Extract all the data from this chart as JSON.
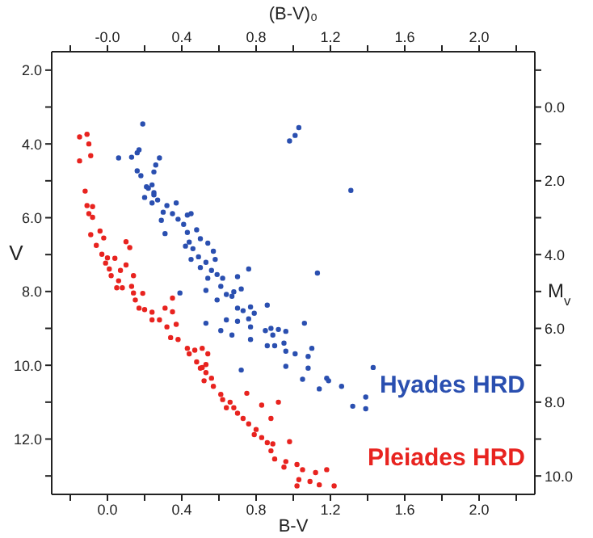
{
  "chart_data": {
    "type": "scatter",
    "xlabel": "B-V",
    "x2label": "(B-V)₀",
    "ylabel": "V",
    "y2label": "M$_{v}$",
    "xlim": [
      -0.3,
      2.3
    ],
    "x2lim": [
      -0.3,
      2.3
    ],
    "ylim": [
      13.5,
      1.5
    ],
    "y2lim": [
      10.5,
      -1.5
    ],
    "xticks": [
      {
        "value": -0.2,
        "label": null
      },
      {
        "value": 0,
        "label": "0.0"
      },
      {
        "value": 0.2,
        "label": null
      },
      0.4,
      {
        "value": 0.6,
        "label": null
      },
      0.8,
      {
        "value": 1.0,
        "label": null
      },
      1.2,
      {
        "value": 1.4,
        "label": null
      },
      1.6,
      {
        "value": 1.8,
        "label": null
      },
      {
        "value": 2.0,
        "label": "2.0"
      },
      {
        "value": 2.2,
        "label": null
      }
    ],
    "x2ticks": [
      {
        "value": -0.2,
        "label": null
      },
      {
        "value": 0,
        "label": "-0.0"
      },
      {
        "value": 0.2,
        "label": null
      },
      0.4,
      {
        "value": 0.6,
        "label": null
      },
      0.8,
      {
        "value": 1.0,
        "label": null
      },
      1.2,
      {
        "value": 1.4,
        "label": null
      },
      1.6,
      {
        "value": 1.8,
        "label": null
      },
      {
        "value": 2.0,
        "label": "2.0"
      },
      {
        "value": 2.2,
        "label": null
      }
    ],
    "yticks": [
      {
        "value": 2,
        "label": "2.0"
      },
      {
        "value": 3,
        "label": null
      },
      {
        "value": 4,
        "label": "4.0"
      },
      {
        "value": 5,
        "label": null
      },
      {
        "value": 6,
        "label": "6.0"
      },
      {
        "value": 7,
        "label": null
      },
      {
        "value": 8,
        "label": "8.0"
      },
      {
        "value": 9,
        "label": null
      },
      {
        "value": 10,
        "label": "10.0"
      },
      {
        "value": 11,
        "label": null
      },
      {
        "value": 12,
        "label": "12.0"
      },
      {
        "value": 13,
        "label": null
      }
    ],
    "y2ticks": [
      {
        "value": -1,
        "label": null
      },
      {
        "value": 0,
        "label": "0.0"
      },
      {
        "value": 1,
        "label": null
      },
      {
        "value": 2,
        "label": "2.0"
      },
      {
        "value": 3,
        "label": null
      },
      {
        "value": 4,
        "label": "4.0"
      },
      {
        "value": 5,
        "label": null
      },
      {
        "value": 6,
        "label": "6.0"
      },
      {
        "value": 7,
        "label": null
      },
      {
        "value": 8,
        "label": "8.0"
      },
      {
        "value": 9,
        "label": null
      },
      {
        "value": 10,
        "label": "10.0"
      }
    ],
    "marker": "circle",
    "legend": false,
    "series": [
      {
        "name": "Hyades HRD",
        "color": "#2a4fb0",
        "x": [
          0.19,
          0.06,
          0.13,
          0.16,
          0.17,
          0.16,
          0.18,
          0.26,
          0.28,
          0.25,
          0.22,
          0.25,
          0.98,
          1.01,
          1.03,
          1.31,
          0.21,
          0.24,
          0.2,
          0.25,
          0.27,
          0.24,
          0.32,
          0.37,
          0.3,
          0.35,
          0.43,
          0.45,
          0.29,
          0.38,
          0.41,
          0.31,
          0.43,
          0.48,
          0.44,
          0.5,
          0.42,
          0.46,
          0.54,
          0.57,
          0.45,
          0.49,
          0.53,
          0.58,
          0.5,
          0.56,
          0.59,
          0.62,
          0.54,
          0.7,
          0.76,
          1.13,
          0.61,
          0.53,
          0.39,
          0.64,
          0.68,
          0.67,
          0.72,
          0.59,
          0.7,
          0.73,
          0.77,
          0.79,
          0.86,
          0.76,
          0.7,
          0.64,
          0.53,
          0.77,
          0.85,
          0.88,
          0.92,
          0.96,
          0.89,
          0.67,
          0.61,
          0.77,
          0.86,
          0.9,
          0.95,
          0.96,
          1.01,
          1.08,
          1.06,
          1.1,
          0.96,
          1.08,
          1.43,
          0.72,
          1.05,
          1.14,
          1.18,
          1.19,
          1.26,
          1.32,
          1.39,
          1.39
        ],
        "values": [
          3.46,
          4.38,
          4.36,
          4.24,
          4.16,
          4.73,
          4.86,
          4.57,
          4.38,
          4.76,
          5.2,
          5.32,
          3.92,
          3.77,
          3.56,
          5.26,
          5.16,
          5.11,
          5.45,
          5.38,
          5.52,
          5.6,
          5.67,
          5.6,
          5.85,
          5.89,
          5.93,
          5.89,
          6.07,
          6.04,
          6.18,
          6.43,
          6.4,
          6.33,
          6.66,
          6.57,
          6.77,
          6.84,
          6.69,
          6.91,
          7.13,
          7.06,
          7.21,
          7.13,
          7.35,
          7.43,
          7.54,
          7.64,
          7.64,
          7.6,
          7.39,
          7.5,
          7.86,
          7.97,
          8.04,
          8.08,
          8.01,
          8.13,
          7.93,
          8.23,
          8.45,
          8.52,
          8.42,
          8.59,
          8.37,
          8.74,
          8.81,
          8.77,
          8.86,
          8.96,
          9.06,
          9.0,
          9.03,
          9.08,
          9.18,
          9.18,
          9.06,
          9.3,
          9.47,
          9.47,
          9.4,
          9.62,
          9.69,
          9.76,
          8.86,
          9.54,
          10.03,
          10.08,
          10.06,
          10.13,
          10.38,
          10.64,
          10.35,
          10.42,
          10.57,
          11.11,
          10.86,
          11.18
        ]
      },
      {
        "name": "Pleiades HRD",
        "color": "#e8231f",
        "x": [
          -0.15,
          -0.11,
          -0.1,
          -0.09,
          -0.15,
          -0.12,
          -0.11,
          -0.08,
          -0.1,
          -0.08,
          -0.04,
          -0.09,
          -0.02,
          -0.06,
          0.1,
          0.12,
          -0.03,
          0.0,
          0.04,
          -0.01,
          0.1,
          0.01,
          0.02,
          0.07,
          0.06,
          0.14,
          0.05,
          0.08,
          0.13,
          0.14,
          0.19,
          0.15,
          0.17,
          0.2,
          0.24,
          0.35,
          0.31,
          0.35,
          0.24,
          0.28,
          0.32,
          0.37,
          0.34,
          0.38,
          0.43,
          0.47,
          0.51,
          0.44,
          0.54,
          0.48,
          0.53,
          0.5,
          0.51,
          0.53,
          0.52,
          0.56,
          0.57,
          0.61,
          0.62,
          0.66,
          0.64,
          0.68,
          0.75,
          0.7,
          0.73,
          0.83,
          0.88,
          0.92,
          0.76,
          0.8,
          0.79,
          0.83,
          0.86,
          0.89,
          0.98,
          0.88,
          0.9,
          0.96,
          0.95,
          1.02,
          1.05,
          1.12,
          1.18,
          1.03,
          1.09,
          1.14,
          1.02,
          1.22
        ],
        "values": [
          3.81,
          3.74,
          4.0,
          4.32,
          4.46,
          5.28,
          5.67,
          5.7,
          5.89,
          5.99,
          6.36,
          6.46,
          6.55,
          6.75,
          6.65,
          6.81,
          6.99,
          7.09,
          7.1,
          7.23,
          7.28,
          7.39,
          7.57,
          7.43,
          7.71,
          7.57,
          7.9,
          7.9,
          7.86,
          8.04,
          8.05,
          8.23,
          8.45,
          8.49,
          8.56,
          8.18,
          8.45,
          8.55,
          8.77,
          8.77,
          8.96,
          8.89,
          9.25,
          9.3,
          9.54,
          9.59,
          9.54,
          9.69,
          9.69,
          9.91,
          9.98,
          10.08,
          10.06,
          10.2,
          10.42,
          10.35,
          10.57,
          10.79,
          10.93,
          11.0,
          11.15,
          11.15,
          10.76,
          11.3,
          11.44,
          11.08,
          11.44,
          11.0,
          11.59,
          11.74,
          11.88,
          11.96,
          12.1,
          12.13,
          12.07,
          12.32,
          12.54,
          12.61,
          12.76,
          12.69,
          12.83,
          12.91,
          12.83,
          13.1,
          13.15,
          13.24,
          13.27,
          13.27
        ]
      }
    ]
  }
}
